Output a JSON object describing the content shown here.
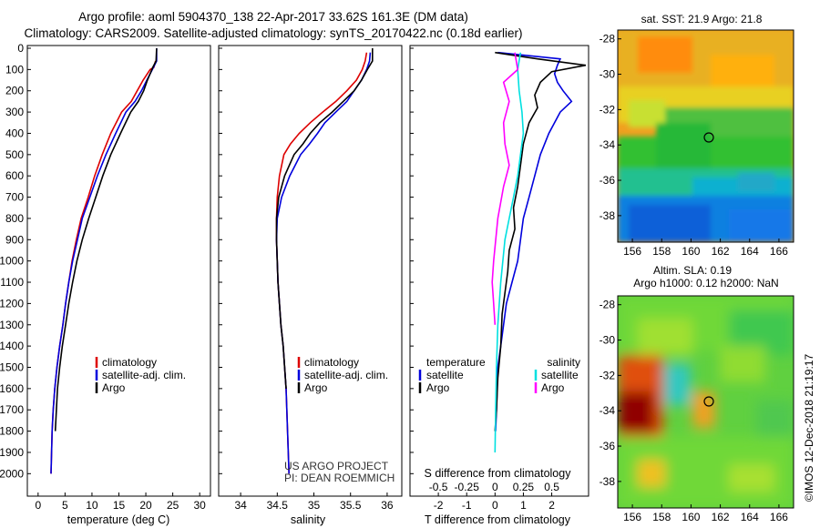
{
  "header": {
    "line1": "Argo profile: aoml 5904370_138 22-Apr-2017 33.62S 161.3E (DM data)",
    "line2": "Climatology: CARS2009. Satellite-adjusted climatology: synTS_20170422.nc (0.18d earlier)"
  },
  "colors": {
    "climatology": "#dd0000",
    "satellite": "#0000dd",
    "argo": "#000000",
    "sat_salinity": "#00e0e0",
    "argo_salinity": "#ff00ff"
  },
  "credit": {
    "line1": "US ARGO PROJECT",
    "line2": "PI: DEAN ROEMMICH"
  },
  "watermark": "©IMOS 12-Dec-2018 21:19:17",
  "chart_data": [
    {
      "type": "line",
      "xlabel": "temperature (deg C)",
      "xlim": [
        -2,
        32
      ],
      "ylim": [
        0,
        2050
      ],
      "yticks": [
        0,
        100,
        200,
        300,
        400,
        500,
        600,
        700,
        800,
        900,
        1000,
        1100,
        1200,
        1300,
        1400,
        1500,
        1600,
        1700,
        1800,
        1900,
        2000
      ],
      "xticks": [
        0,
        5,
        10,
        15,
        20,
        25,
        30
      ],
      "y_reversed": true,
      "legend": [
        "climatology",
        "satellite-adj. clim.",
        "Argo"
      ],
      "series": [
        {
          "name": "climatology",
          "x": [
            21.8,
            21.5,
            20.8,
            19.5,
            18.4,
            17.3,
            15.5,
            13.5,
            11.9,
            10.5,
            9.3,
            8.0,
            7.1,
            6.3,
            5.7,
            5.1,
            4.6,
            4.0,
            3.5,
            3.1,
            2.8,
            2.6,
            2.4
          ],
          "y": [
            60,
            90,
            100,
            150,
            200,
            250,
            300,
            400,
            500,
            600,
            700,
            800,
            900,
            1000,
            1100,
            1200,
            1300,
            1400,
            1500,
            1600,
            1700,
            1800,
            2000
          ]
        },
        {
          "name": "satellite-adj. clim.",
          "x": [
            22.0,
            22.0,
            21.2,
            20.2,
            19.2,
            18.0,
            16.3,
            14.4,
            12.6,
            11.0,
            9.6,
            8.2,
            7.3,
            6.4,
            5.7,
            5.1,
            4.6,
            4.0,
            3.5,
            3.1,
            2.8,
            2.6,
            2.4
          ],
          "y": [
            0,
            60,
            100,
            150,
            200,
            250,
            300,
            400,
            500,
            600,
            700,
            800,
            900,
            1000,
            1100,
            1200,
            1300,
            1400,
            1500,
            1600,
            1700,
            1800,
            2000
          ]
        },
        {
          "name": "Argo",
          "x": [
            22.0,
            21.9,
            21.3,
            20.8,
            20.3,
            19.6,
            18.6,
            17.2,
            15.3,
            13.5,
            12.0,
            10.7,
            9.4,
            8.2,
            7.2,
            6.4,
            5.7,
            5.1,
            4.5,
            4.0,
            3.6,
            3.2
          ],
          "y": [
            0,
            60,
            90,
            120,
            150,
            200,
            250,
            300,
            400,
            500,
            600,
            700,
            800,
            900,
            1000,
            1100,
            1200,
            1300,
            1400,
            1500,
            1600,
            1800
          ]
        }
      ]
    },
    {
      "type": "line",
      "xlabel": "salinity",
      "xlim": [
        33.7,
        36.2
      ],
      "ylim": [
        0,
        2050
      ],
      "xticks": [
        34,
        34.5,
        35,
        35.5,
        36
      ],
      "y_reversed": true,
      "legend": [
        "climatology",
        "satellite-adj. clim.",
        "Argo"
      ],
      "series": [
        {
          "name": "climatology",
          "x": [
            35.72,
            35.7,
            35.66,
            35.58,
            35.45,
            35.3,
            35.12,
            34.95,
            34.8,
            34.68,
            34.59,
            34.53,
            34.5,
            34.49,
            34.49,
            34.5,
            34.51,
            34.53,
            34.55,
            34.58,
            34.6,
            34.62,
            34.64,
            34.66
          ],
          "y": [
            20,
            60,
            100,
            150,
            200,
            250,
            300,
            350,
            400,
            450,
            500,
            600,
            700,
            800,
            900,
            1000,
            1100,
            1200,
            1300,
            1400,
            1500,
            1600,
            1800,
            2000
          ]
        },
        {
          "name": "satellite-adj. clim.",
          "x": [
            35.77,
            35.76,
            35.72,
            35.65,
            35.55,
            35.45,
            35.3,
            35.15,
            35.05,
            34.94,
            34.82,
            34.67,
            34.56,
            34.5,
            34.49,
            34.5,
            34.51,
            34.53,
            34.55,
            34.58,
            34.6,
            34.62,
            34.64,
            34.66
          ],
          "y": [
            20,
            60,
            100,
            150,
            200,
            250,
            300,
            350,
            400,
            450,
            500,
            600,
            700,
            800,
            900,
            1000,
            1100,
            1200,
            1300,
            1400,
            1500,
            1600,
            1800,
            2000
          ]
        },
        {
          "name": "Argo",
          "x": [
            35.8,
            35.8,
            35.73,
            35.65,
            35.55,
            35.4,
            35.25,
            35.08,
            34.95,
            34.85,
            34.73,
            34.6,
            34.52,
            34.49,
            34.49,
            34.5,
            34.51,
            34.53,
            34.55,
            34.58,
            34.6,
            34.62
          ],
          "y": [
            0,
            60,
            100,
            150,
            200,
            250,
            300,
            350,
            400,
            450,
            500,
            600,
            700,
            800,
            900,
            1000,
            1100,
            1200,
            1300,
            1400,
            1500,
            1600
          ]
        }
      ]
    },
    {
      "type": "line",
      "xlabel": "T difference from climatology",
      "xlabel_top": "S difference from climatology",
      "xlim": [
        -3,
        3.3
      ],
      "ylim": [
        0,
        2050
      ],
      "xticks": [
        -2,
        -1,
        0,
        1,
        2
      ],
      "xticks_top": [
        "-0.5",
        "-0.25",
        "0",
        "0.25",
        "0.5"
      ],
      "y_reversed": true,
      "legend_left_title": "temperature",
      "legend_right_title": "salinity",
      "legend": [
        "satellite",
        "Argo",
        "satellite",
        "Argo"
      ],
      "series": [
        {
          "name": "satellite",
          "quantity": "temperature",
          "x": [
            0.1,
            2.3,
            2.2,
            2.1,
            2.2,
            2.4,
            2.7,
            2.3,
            1.9,
            1.6,
            1.4,
            1.2,
            1.0,
            0.9,
            0.8,
            0.6,
            0.4,
            0.3,
            0.2,
            0.1,
            0.05,
            0.02
          ],
          "y": [
            20,
            50,
            80,
            120,
            160,
            200,
            250,
            300,
            400,
            500,
            600,
            700,
            800,
            900,
            1000,
            1100,
            1200,
            1300,
            1400,
            1500,
            1700,
            1800
          ]
        },
        {
          "name": "Argo",
          "quantity": "temperature",
          "x": [
            0,
            1.5,
            3.2,
            2.0,
            1.6,
            1.4,
            1.5,
            1.2,
            1.0,
            0.9,
            0.8,
            0.65,
            0.7,
            0.5,
            0.45,
            0.35,
            0.25,
            0.2,
            0.1,
            0.05,
            0.0
          ],
          "y": [
            20,
            50,
            80,
            110,
            160,
            220,
            280,
            350,
            450,
            550,
            650,
            750,
            850,
            950,
            1050,
            1150,
            1250,
            1400,
            1550,
            1700,
            1800
          ]
        },
        {
          "name": "satellite",
          "quantity": "salinity",
          "x": [
            0.9,
            0.8,
            0.85,
            0.95,
            1.0,
            0.9,
            0.8,
            0.65,
            0.5,
            0.35,
            0.2,
            0.1,
            0.05,
            0.02,
            0.0
          ],
          "y": [
            20,
            100,
            200,
            300,
            400,
            500,
            600,
            700,
            800,
            900,
            1100,
            1300,
            1500,
            1700,
            1900
          ]
        },
        {
          "name": "Argo",
          "quantity": "salinity",
          "x": [
            0.7,
            0.8,
            0.3,
            0.5,
            0.3,
            0.35,
            0.5,
            0.3,
            0.1,
            -0.05,
            -0.1,
            -0.05,
            0.0
          ],
          "y": [
            20,
            100,
            160,
            250,
            350,
            450,
            550,
            650,
            800,
            1000,
            1100,
            1200,
            1300
          ]
        }
      ]
    },
    {
      "type": "heatmap",
      "title": "sat. SST: 21.9 Argo: 21.8",
      "xticks": [
        156,
        158,
        160,
        162,
        164,
        166
      ],
      "yticks": [
        -28,
        -30,
        -32,
        -34,
        -36,
        -38
      ],
      "xlim": [
        155,
        167
      ],
      "ylim": [
        -39.5,
        -27.5
      ],
      "marker": {
        "lon": 161.3,
        "lat": -33.62
      }
    },
    {
      "type": "heatmap",
      "title": "Altim. SLA: 0.19",
      "subtitle": "Argo h1000: 0.12 h2000: NaN",
      "xticks": [
        156,
        158,
        160,
        162,
        164,
        166
      ],
      "yticks": [
        -28,
        -30,
        -32,
        -34,
        -36,
        -38
      ],
      "xlim": [
        155,
        167
      ],
      "ylim": [
        -39.5,
        -27.5
      ],
      "marker": {
        "lon": 161.3,
        "lat": -33.62
      }
    }
  ]
}
